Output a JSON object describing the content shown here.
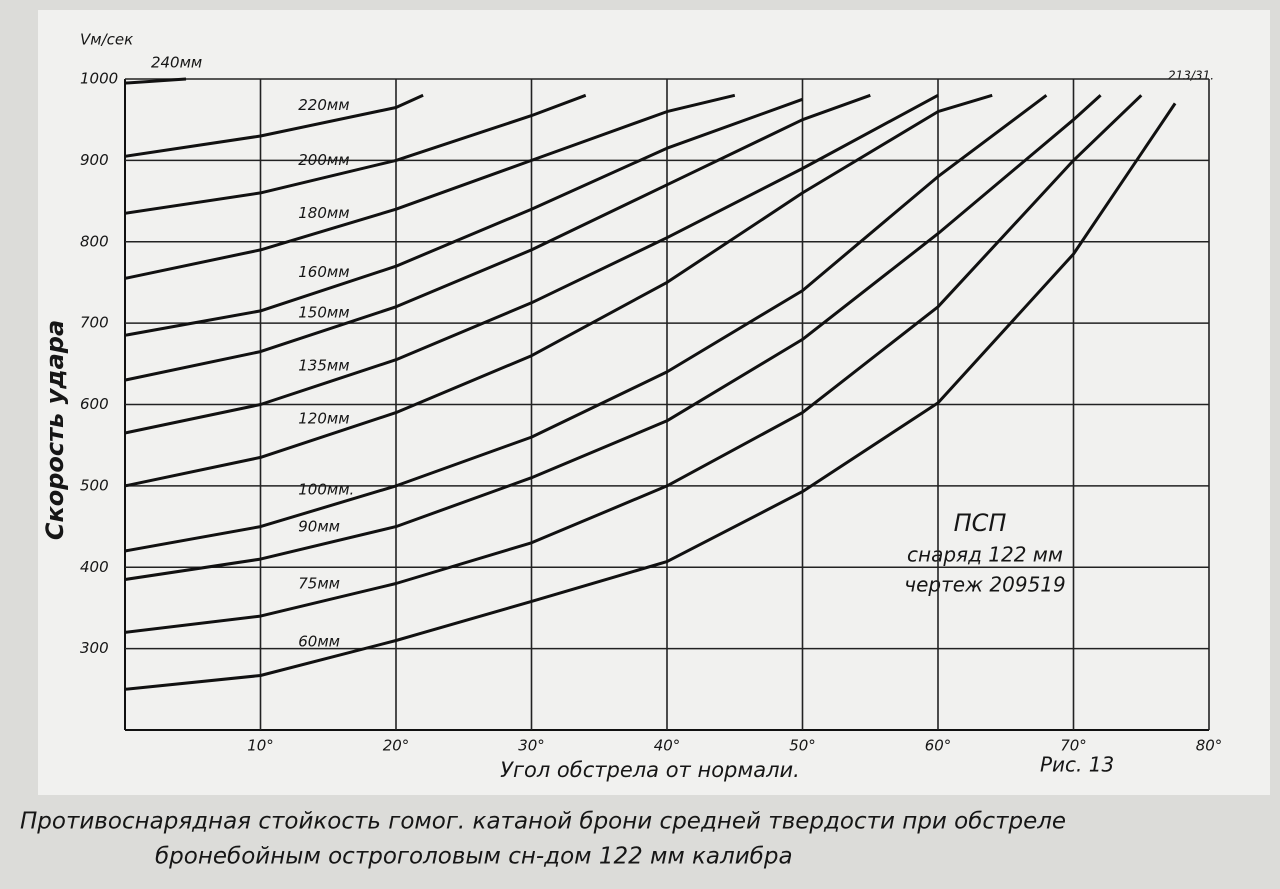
{
  "chart_data": {
    "type": "line",
    "y_unit_label": "Vм/сек",
    "y_axis_label": "Скорость удара",
    "x_axis_label": "Угол обстрела от нормали.",
    "caption": [
      "Противоснарядная стойкость гомог. катаной брони средней твердости при обстреле",
      "бронебойным остроголовым сн-дом 122 мм калибра"
    ],
    "annotations": [
      "ПСП",
      "снаряд 122 мм",
      "чертеж 209519"
    ],
    "sheet_number": "213/31.",
    "figure_label": "Рис. 13",
    "xlim": [
      0,
      80
    ],
    "ylim": [
      200,
      1000
    ],
    "xticks": [
      {
        "value": 10,
        "label": "10°"
      },
      {
        "value": 20,
        "label": "20°"
      },
      {
        "value": 30,
        "label": "30°"
      },
      {
        "value": 40,
        "label": "40°"
      },
      {
        "value": 50,
        "label": "50°"
      },
      {
        "value": 60,
        "label": "60°"
      },
      {
        "value": 70,
        "label": "70°"
      },
      {
        "value": 80,
        "label": "80°"
      }
    ],
    "yticks": [
      300,
      400,
      500,
      600,
      700,
      800,
      900,
      1000
    ],
    "grid": true,
    "color": "#111111",
    "series": [
      {
        "name": "240мм",
        "x": [
          0,
          4.5
        ],
        "values": [
          995,
          1000
        ]
      },
      {
        "name": "220мм",
        "x": [
          0,
          10,
          20,
          22
        ],
        "values": [
          905,
          930,
          965,
          980
        ]
      },
      {
        "name": "200мм",
        "x": [
          0,
          10,
          20,
          30,
          34
        ],
        "values": [
          835,
          860,
          900,
          955,
          980
        ]
      },
      {
        "name": "180мм",
        "x": [
          0,
          10,
          20,
          30,
          40,
          45
        ],
        "values": [
          755,
          790,
          840,
          900,
          960,
          980
        ]
      },
      {
        "name": "160мм",
        "x": [
          0,
          10,
          20,
          30,
          40,
          50
        ],
        "values": [
          685,
          715,
          770,
          840,
          915,
          975
        ]
      },
      {
        "name": "150мм",
        "x": [
          0,
          10,
          20,
          30,
          40,
          50,
          55
        ],
        "values": [
          630,
          665,
          720,
          790,
          870,
          950,
          980
        ]
      },
      {
        "name": "135мм",
        "x": [
          0,
          10,
          20,
          30,
          40,
          50,
          60
        ],
        "values": [
          565,
          600,
          655,
          725,
          805,
          890,
          980
        ]
      },
      {
        "name": "120мм",
        "x": [
          0,
          10,
          20,
          30,
          40,
          50,
          60,
          64
        ],
        "values": [
          500,
          535,
          590,
          660,
          750,
          860,
          960,
          980
        ]
      },
      {
        "name": "100мм.",
        "x": [
          0,
          10,
          20,
          30,
          40,
          50,
          60,
          68
        ],
        "values": [
          420,
          450,
          500,
          560,
          640,
          740,
          880,
          980
        ]
      },
      {
        "name": "90мм",
        "x": [
          0,
          10,
          20,
          30,
          40,
          50,
          60,
          70,
          72
        ],
        "values": [
          385,
          410,
          450,
          510,
          580,
          680,
          810,
          950,
          980
        ]
      },
      {
        "name": "75мм",
        "x": [
          0,
          10,
          20,
          30,
          40,
          50,
          60,
          70,
          75
        ],
        "values": [
          320,
          340,
          380,
          430,
          500,
          590,
          720,
          900,
          980
        ]
      },
      {
        "name": "60мм",
        "x": [
          0,
          10,
          20,
          30,
          40,
          50,
          60,
          70,
          77.5
        ],
        "values": [
          250,
          267,
          310,
          358,
          407,
          493,
          602,
          785,
          970
        ]
      }
    ]
  }
}
